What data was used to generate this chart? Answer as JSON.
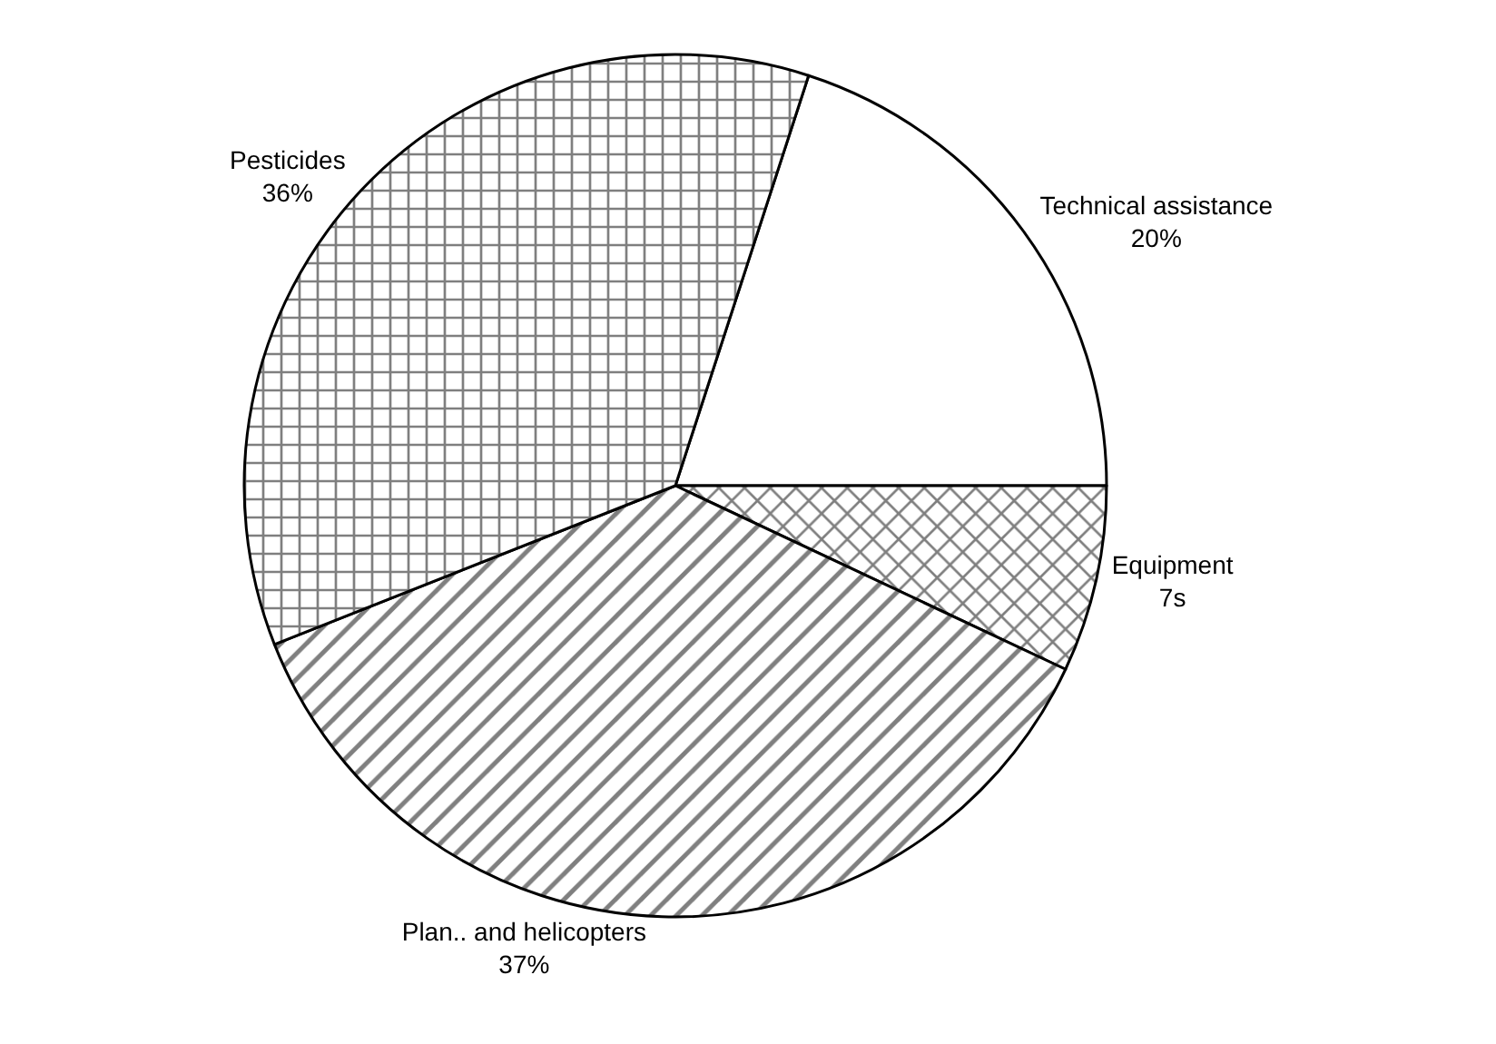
{
  "chart_data": {
    "type": "pie",
    "categories": [
      "Technical assistance",
      "Equipment",
      "Plan.. and helicopters",
      "Pesticides"
    ],
    "values": [
      20,
      7,
      37,
      36
    ],
    "value_labels": [
      "20%",
      "7s",
      "37%",
      "36%"
    ],
    "colors": [
      "#ffffff",
      "#000000",
      "#000000",
      "#000000"
    ],
    "legend": false
  }
}
